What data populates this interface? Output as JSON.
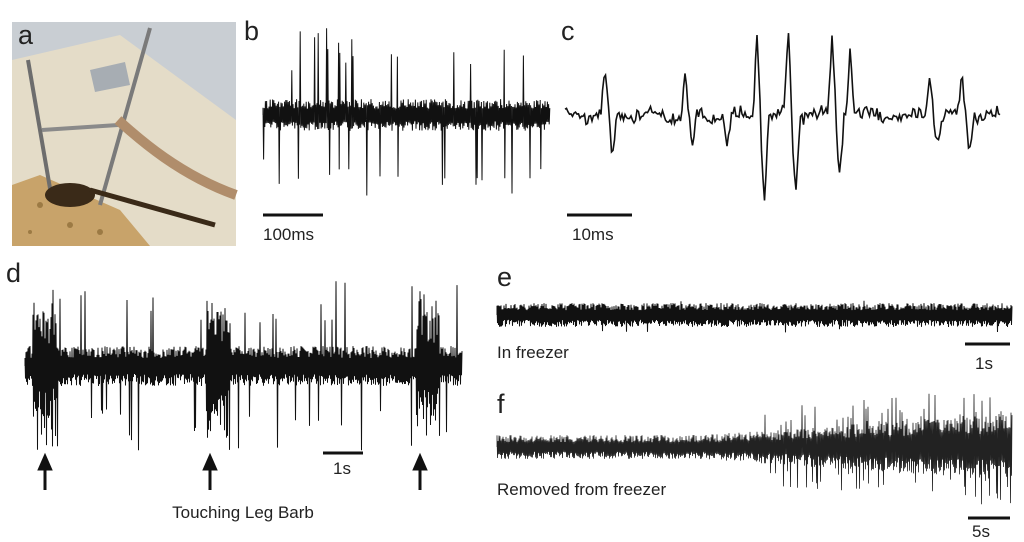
{
  "panels": [
    {
      "label": "a"
    },
    {
      "label": "b",
      "scale_bar": "100ms"
    },
    {
      "label": "c",
      "scale_bar": "10ms"
    },
    {
      "label": "d",
      "scale_bar": "1s",
      "caption": "Touching Leg Barb"
    },
    {
      "label": "e",
      "scale_bar": "1s",
      "caption": "In freezer"
    },
    {
      "label": "f",
      "scale_bar": "5s",
      "caption": "Removed from freezer"
    }
  ]
}
